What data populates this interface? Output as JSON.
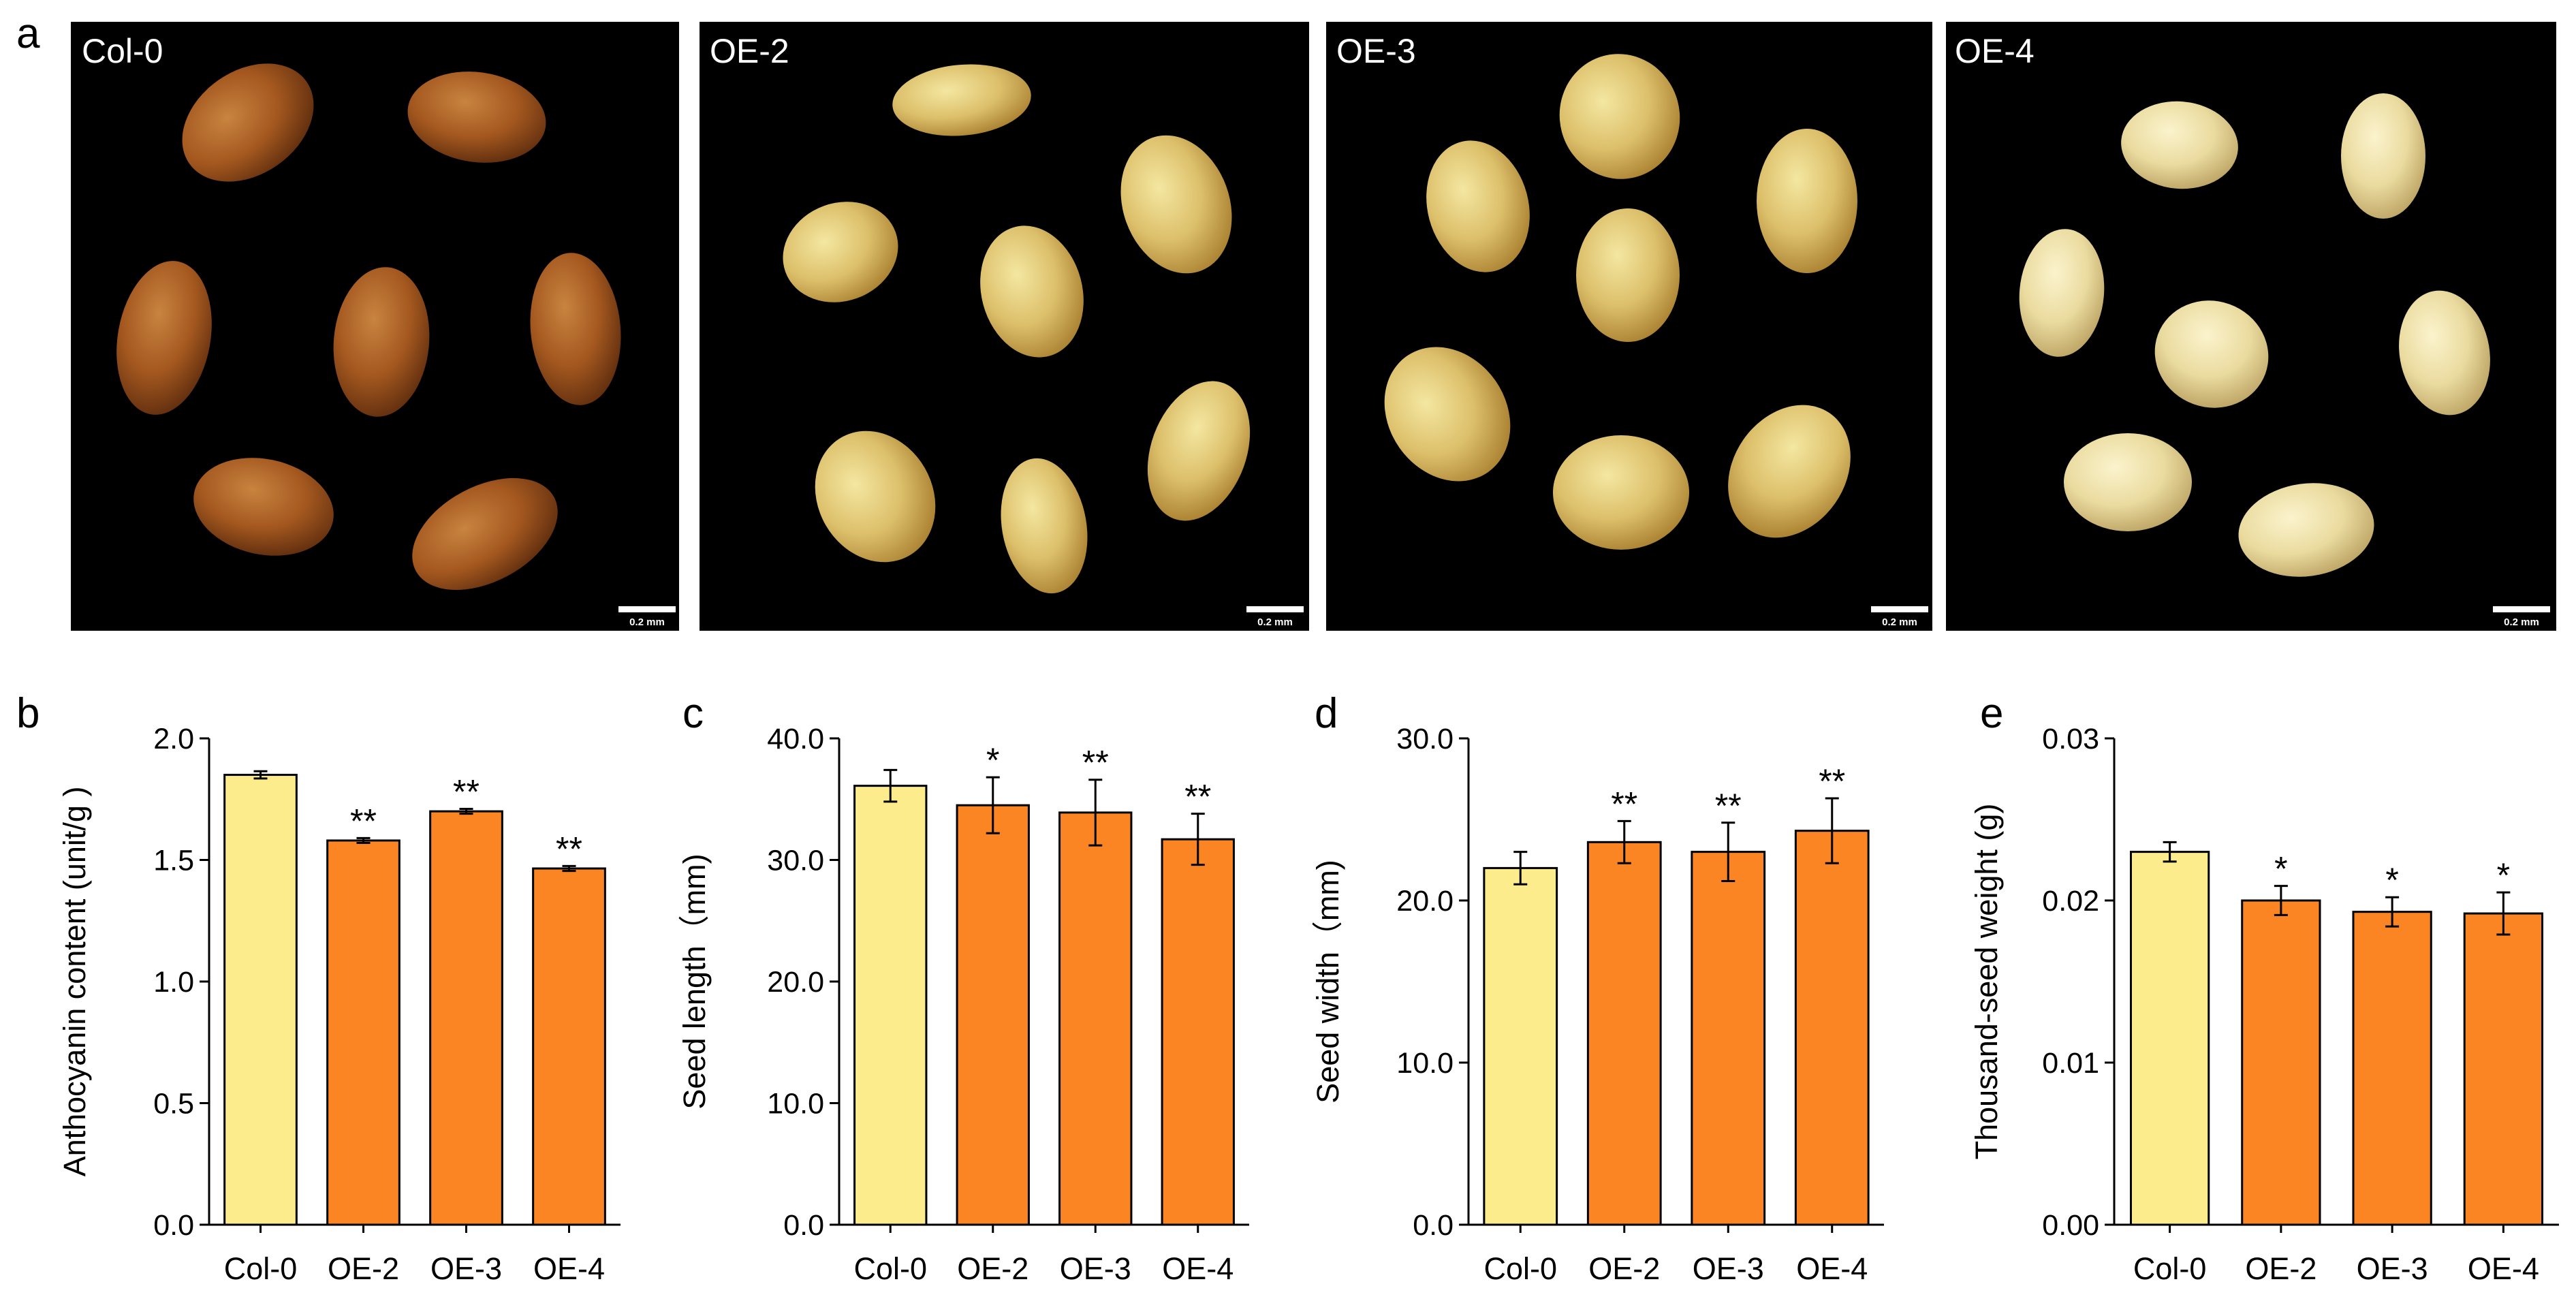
{
  "photo_panel": {
    "letter": "a",
    "photos": [
      {
        "label": "Col-0",
        "scale_label": "0.2 mm"
      },
      {
        "label": "OE-2",
        "scale_label": "0.2 mm"
      },
      {
        "label": "OE-3",
        "scale_label": "0.2 mm"
      },
      {
        "label": "OE-4",
        "scale_label": "0.2 mm"
      }
    ]
  },
  "chart_data": [
    {
      "type": "bar",
      "panel_letter": "b",
      "categories": [
        "Col-0",
        "OE-2",
        "OE-3",
        "OE-4"
      ],
      "values": [
        1.85,
        1.58,
        1.7,
        1.465
      ],
      "errors": [
        0.015,
        0.01,
        0.01,
        0.01
      ],
      "significance": [
        "",
        "**",
        "**",
        "**"
      ],
      "ylabel": "Anthocyanin content (unit/g )",
      "ylim": [
        0,
        2.0
      ],
      "yticks": [
        "0.0",
        "0.5",
        "1.0",
        "1.5",
        "2.0"
      ],
      "bar_colors": [
        "#fcec8c",
        "#fa8522",
        "#fa8522",
        "#fa8522"
      ]
    },
    {
      "type": "bar",
      "panel_letter": "c",
      "categories": [
        "Col-0",
        "OE-2",
        "OE-3",
        "OE-4"
      ],
      "values": [
        36.1,
        34.5,
        33.9,
        31.7
      ],
      "errors": [
        1.3,
        2.3,
        2.7,
        2.1
      ],
      "significance": [
        "",
        "*",
        "**",
        "**"
      ],
      "ylabel": "Seed length（mm)",
      "ylim": [
        0,
        40.0
      ],
      "yticks": [
        "0.0",
        "10.0",
        "20.0",
        "30.0",
        "40.0"
      ],
      "bar_colors": [
        "#fcec8c",
        "#fa8522",
        "#fa8522",
        "#fa8522"
      ]
    },
    {
      "type": "bar",
      "panel_letter": "d",
      "categories": [
        "Col-0",
        "OE-2",
        "OE-3",
        "OE-4"
      ],
      "values": [
        22.0,
        23.6,
        23.0,
        24.3
      ],
      "errors": [
        1.0,
        1.3,
        1.8,
        2.0
      ],
      "significance": [
        "",
        "**",
        "**",
        "**"
      ],
      "ylabel": "Seed width（mm)",
      "ylim": [
        0,
        30.0
      ],
      "yticks": [
        "0.0",
        "10.0",
        "20.0",
        "30.0"
      ],
      "bar_colors": [
        "#fcec8c",
        "#fa8522",
        "#fa8522",
        "#fa8522"
      ]
    },
    {
      "type": "bar",
      "panel_letter": "e",
      "categories": [
        "Col-0",
        "OE-2",
        "OE-3",
        "OE-4"
      ],
      "values": [
        0.023,
        0.02,
        0.0193,
        0.0192
      ],
      "errors": [
        0.0006,
        0.0009,
        0.0009,
        0.0013
      ],
      "significance": [
        "",
        "*",
        "*",
        "*"
      ],
      "ylabel": "Thousand-seed weight (g)",
      "ylim": [
        0,
        0.03
      ],
      "yticks": [
        "0.00",
        "0.01",
        "0.02",
        "0.03"
      ],
      "bar_colors": [
        "#fcec8c",
        "#fa8522",
        "#fa8522",
        "#fa8522"
      ]
    }
  ]
}
